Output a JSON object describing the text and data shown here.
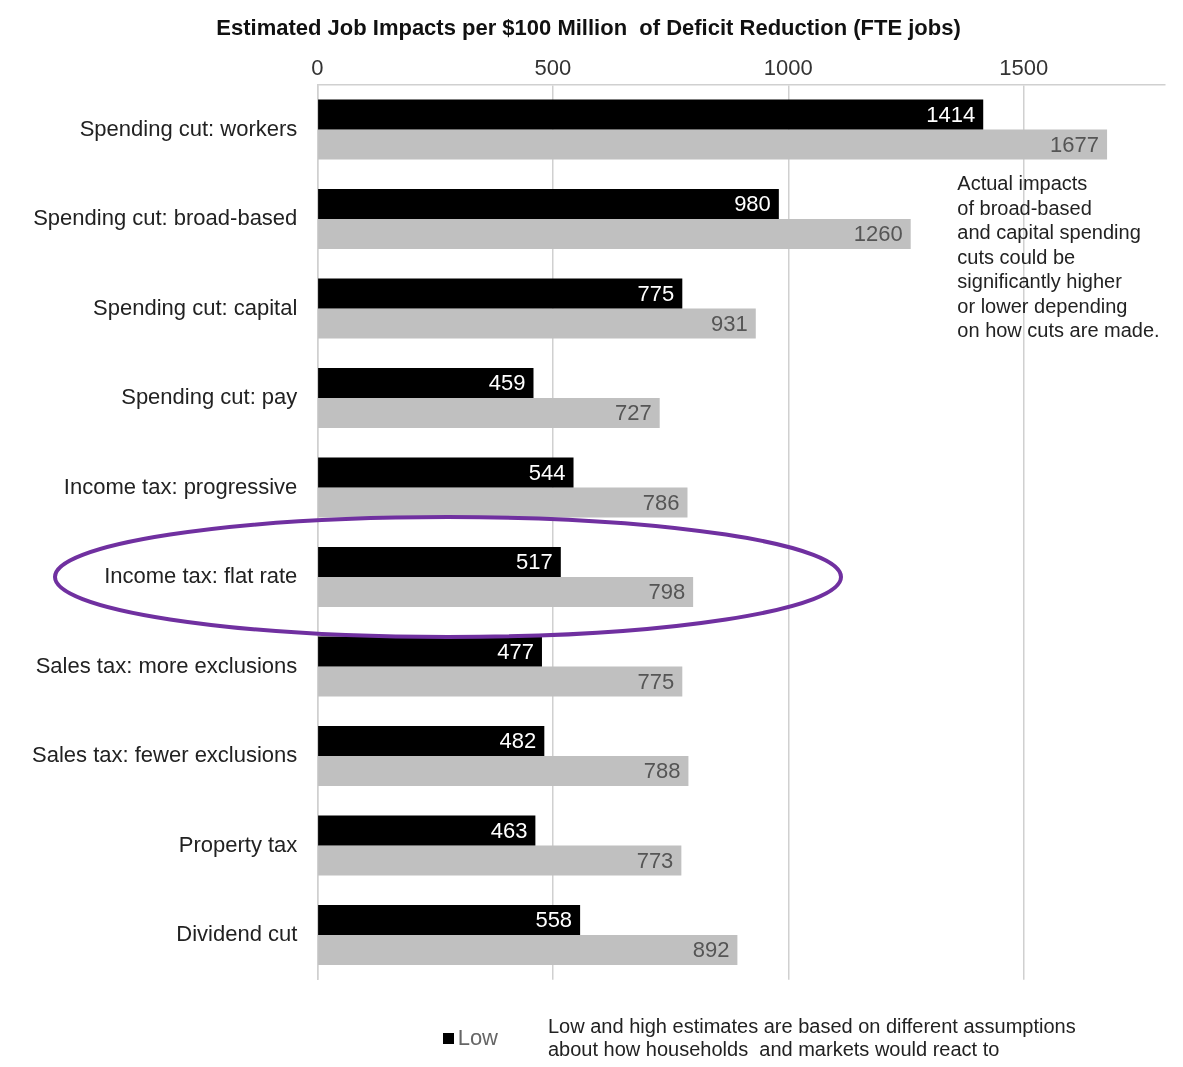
{
  "chart_data": {
    "type": "bar",
    "orientation": "horizontal",
    "title": "Estimated Job Impacts per $100 Million  of Deficit Reduction (FTE jobs)",
    "categories": [
      "Spending cut: workers",
      "Spending cut: broad-based",
      "Spending cut: capital",
      "Spending cut: pay",
      "Income tax: progressive",
      "Income tax: flat rate",
      "Sales tax: more exclusions",
      "Sales tax: fewer exclusions",
      "Property tax",
      "Dividend cut"
    ],
    "series": [
      {
        "name": "Low",
        "color": "#000000",
        "values": [
          1414,
          980,
          775,
          459,
          544,
          517,
          477,
          482,
          463,
          558
        ]
      },
      {
        "color": "#c0c0c0",
        "values": [
          1677,
          1260,
          931,
          727,
          786,
          798,
          775,
          788,
          773,
          892
        ]
      }
    ],
    "xlim": [
      0,
      1800
    ],
    "xticks": [
      0,
      500,
      1000,
      1500
    ],
    "grid": "x",
    "data_labels": true,
    "legend": "bottom",
    "annotations": [
      "Actual impacts\nof broad-based\nand capital spending\ncuts could be\nsignificantly higher\nor lower depending\non how cuts are made.",
      "Low and high estimates are based on different assumptions\nabout how households  and markets would react to"
    ]
  }
}
